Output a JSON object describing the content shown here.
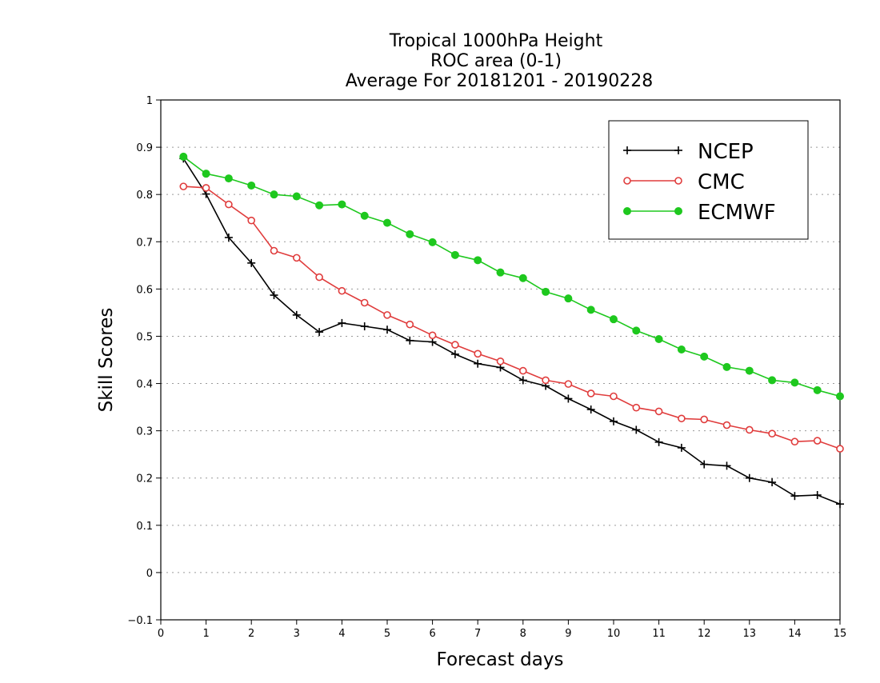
{
  "chart_data": {
    "type": "line",
    "title": [
      "Tropical 1000hPa Height",
      "ROC area (0-1)",
      "Average For 20181201 - 20190228"
    ],
    "xlabel": "Forecast days",
    "ylabel": "Skill Scores",
    "xlim": [
      0,
      15
    ],
    "ylim": [
      -0.1,
      1
    ],
    "xticks": [
      0,
      1,
      2,
      3,
      4,
      5,
      6,
      7,
      8,
      9,
      10,
      11,
      12,
      13,
      14,
      15
    ],
    "xtick_labels": [
      "0",
      "1",
      "2",
      "3",
      "4",
      "5",
      "6",
      "7",
      "8",
      "9",
      "10",
      "11",
      "12",
      "13",
      "14",
      "15"
    ],
    "yticks": [
      -0.1,
      0,
      0.1,
      0.2,
      0.3,
      0.4,
      0.5,
      0.6,
      0.7,
      0.8,
      0.9,
      1
    ],
    "ytick_labels": [
      "−0.1",
      "0",
      "0.1",
      "0.2",
      "0.3",
      "0.4",
      "0.5",
      "0.6",
      "0.7",
      "0.8",
      "0.9",
      "1"
    ],
    "grid": true,
    "legend_position": "top-right",
    "x": [
      0.5,
      1,
      1.5,
      2,
      2.5,
      3,
      3.5,
      4,
      4.5,
      5,
      5.5,
      6,
      6.5,
      7,
      7.5,
      8,
      8.5,
      9,
      9.5,
      10,
      10.5,
      11,
      11.5,
      12,
      12.5,
      13,
      13.5,
      14,
      14.5,
      15
    ],
    "series": [
      {
        "name": "NCEP",
        "color": "#000000",
        "marker": "plus",
        "values": [
          0.876,
          0.801,
          0.709,
          0.655,
          0.587,
          0.545,
          0.509,
          0.528,
          0.521,
          0.514,
          0.491,
          0.488,
          0.462,
          0.442,
          0.434,
          0.407,
          0.395,
          0.368,
          0.345,
          0.32,
          0.302,
          0.276,
          0.264,
          0.229,
          0.226,
          0.2,
          0.191,
          0.162,
          0.164,
          0.145
        ]
      },
      {
        "name": "CMC",
        "color": "#e03c3c",
        "marker": "open-circle",
        "values": [
          0.817,
          0.814,
          0.779,
          0.745,
          0.681,
          0.666,
          0.625,
          0.596,
          0.571,
          0.545,
          0.525,
          0.502,
          0.482,
          0.463,
          0.447,
          0.427,
          0.407,
          0.399,
          0.379,
          0.373,
          0.349,
          0.341,
          0.326,
          0.324,
          0.312,
          0.302,
          0.294,
          0.277,
          0.279,
          0.262
        ]
      },
      {
        "name": "ECMWF",
        "color": "#1ec81e",
        "marker": "filled-circle",
        "values": [
          0.88,
          0.844,
          0.834,
          0.819,
          0.8,
          0.796,
          0.777,
          0.779,
          0.755,
          0.74,
          0.716,
          0.699,
          0.672,
          0.661,
          0.635,
          0.623,
          0.594,
          0.58,
          0.556,
          0.536,
          0.512,
          0.494,
          0.472,
          0.457,
          0.435,
          0.427,
          0.407,
          0.402,
          0.386,
          0.373
        ]
      }
    ]
  }
}
